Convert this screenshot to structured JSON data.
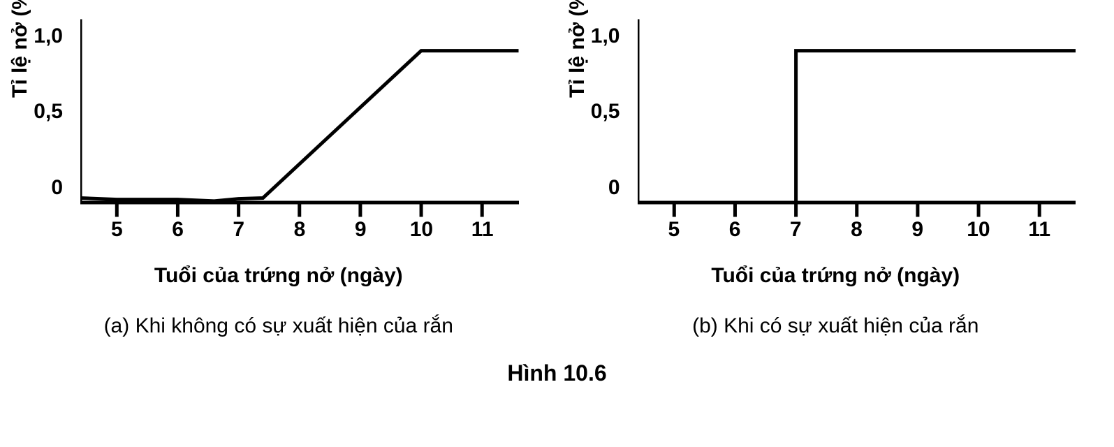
{
  "figure_title": "Hình 10.6",
  "global": {
    "background_color": "#ffffff",
    "stroke_color": "#000000",
    "axis_width": 5,
    "line_width": 5,
    "tick_len": 18,
    "font_family": "Arial",
    "tick_fontsize": 30,
    "label_fontsize": 30,
    "title_fontsize": 32
  },
  "panels": [
    {
      "id": "a",
      "type": "line",
      "caption": "(a) Khi không có sự xuất hiện của rắn",
      "ylabel": "Tỉ lệ nở (%)",
      "xlabel": "Tuổi của trứng nở (ngày)",
      "xlim": [
        4.4,
        11.6
      ],
      "ylim": [
        0,
        1.15
      ],
      "xticks": [
        5,
        6,
        7,
        8,
        9,
        10,
        11
      ],
      "yticks": [
        0,
        0.5,
        1.0
      ],
      "ytick_labels": [
        "0",
        "0,5",
        "1,0"
      ],
      "series": {
        "x": [
          4.4,
          5,
          6,
          6.6,
          7,
          7.4,
          10,
          11.6
        ],
        "y": [
          0.03,
          0.02,
          0.02,
          0.01,
          0.025,
          0.03,
          1.0,
          1.0
        ],
        "color": "#000000"
      }
    },
    {
      "id": "b",
      "type": "line",
      "caption": "(b) Khi có sự xuất hiện của rắn",
      "ylabel": "Tỉ lệ nở (%)",
      "xlabel": "Tuổi của trứng nở (ngày)",
      "xlim": [
        4.4,
        11.6
      ],
      "ylim": [
        0,
        1.15
      ],
      "xticks": [
        5,
        6,
        7,
        8,
        9,
        10,
        11
      ],
      "yticks": [
        0,
        0.5,
        1.0
      ],
      "ytick_labels": [
        "0",
        "0,5",
        "1,0"
      ],
      "series": {
        "x": [
          4.4,
          7,
          7,
          11.6
        ],
        "y": [
          0,
          0,
          1.0,
          1.0
        ],
        "color": "#000000"
      }
    }
  ]
}
